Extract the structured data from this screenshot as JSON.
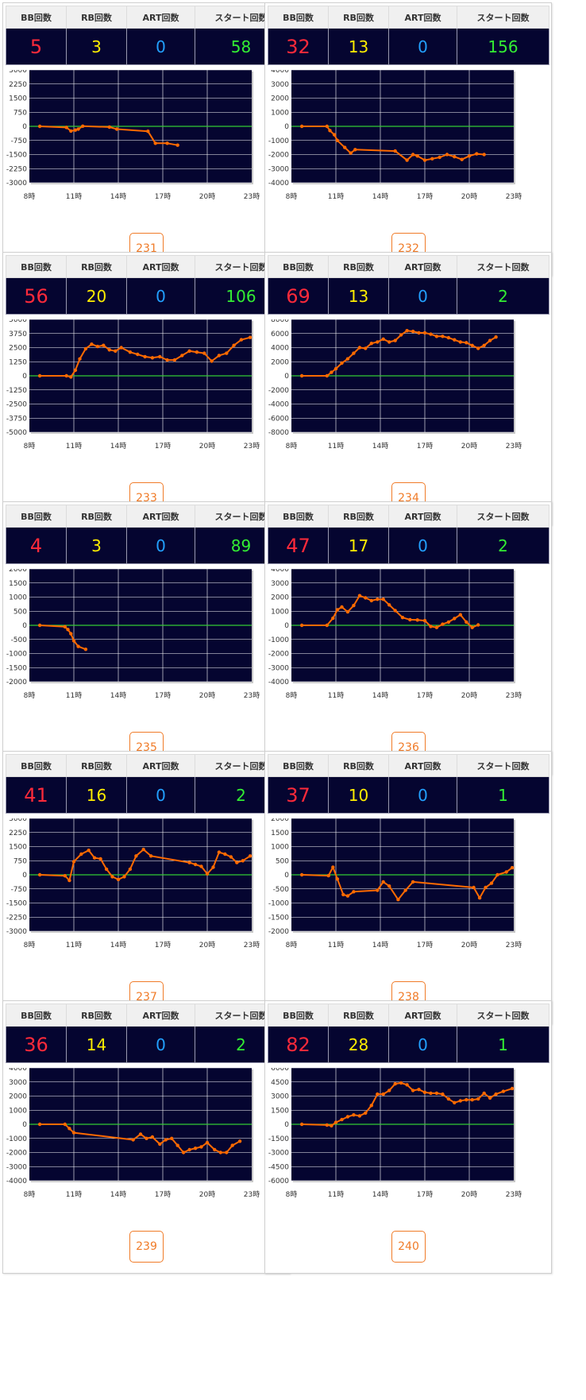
{
  "headers": {
    "bb": "BB回数",
    "rb": "RB回数",
    "art": "ART回数",
    "start": "スタート回数"
  },
  "x_ticks": [
    "8時",
    "11時",
    "14時",
    "17時",
    "20時",
    "23時"
  ],
  "colors": {
    "plot_bg": "#050530",
    "line": "#ff6a00",
    "zero_line": "#33cc33",
    "grid": "#ffffff"
  },
  "machines": [
    {
      "id": "231",
      "bb": "5",
      "rb": "3",
      "art": "0",
      "start": "58",
      "chart_data": {
        "type": "line",
        "x_unit": "hour",
        "xlim": [
          8,
          23
        ],
        "ylim": [
          -3000,
          3000
        ],
        "yticks": [
          3000,
          2250,
          1500,
          750,
          0,
          -750,
          -1500,
          -2250,
          -3000
        ],
        "points": [
          [
            8.7,
            0
          ],
          [
            10.5,
            -60
          ],
          [
            10.8,
            -250
          ],
          [
            11.1,
            -200
          ],
          [
            11.3,
            -150
          ],
          [
            11.6,
            10
          ],
          [
            13.4,
            -40
          ],
          [
            13.9,
            -150
          ],
          [
            16.0,
            -260
          ],
          [
            16.5,
            -900
          ],
          [
            17.3,
            -900
          ],
          [
            18.0,
            -1000
          ]
        ]
      }
    },
    {
      "id": "232",
      "bb": "32",
      "rb": "13",
      "art": "0",
      "start": "156",
      "chart_data": {
        "type": "line",
        "x_unit": "hour",
        "xlim": [
          8,
          23
        ],
        "ylim": [
          -4000,
          4000
        ],
        "yticks": [
          4000,
          3000,
          2000,
          1000,
          0,
          -1000,
          -2000,
          -3000,
          -4000
        ],
        "points": [
          [
            8.7,
            0
          ],
          [
            10.4,
            0
          ],
          [
            10.6,
            -300
          ],
          [
            10.9,
            -600
          ],
          [
            11.1,
            -1000
          ],
          [
            11.6,
            -1500
          ],
          [
            12.0,
            -1900
          ],
          [
            12.3,
            -1650
          ],
          [
            15.0,
            -1750
          ],
          [
            15.8,
            -2400
          ],
          [
            16.2,
            -2000
          ],
          [
            16.5,
            -2100
          ],
          [
            17.0,
            -2400
          ],
          [
            17.5,
            -2300
          ],
          [
            18.0,
            -2200
          ],
          [
            18.5,
            -2000
          ],
          [
            19.0,
            -2150
          ],
          [
            19.5,
            -2350
          ],
          [
            20.0,
            -2100
          ],
          [
            20.5,
            -1950
          ],
          [
            21.0,
            -2000
          ]
        ]
      }
    },
    {
      "id": "233",
      "bb": "56",
      "rb": "20",
      "art": "0",
      "start": "106",
      "chart_data": {
        "type": "line",
        "x_unit": "hour",
        "xlim": [
          8,
          23
        ],
        "ylim": [
          -5000,
          5000
        ],
        "yticks": [
          5000,
          3750,
          2500,
          1250,
          0,
          -1250,
          -2500,
          -3750,
          -5000
        ],
        "points": [
          [
            8.7,
            0
          ],
          [
            10.5,
            0
          ],
          [
            10.8,
            -100
          ],
          [
            11.1,
            500
          ],
          [
            11.4,
            1500
          ],
          [
            11.8,
            2400
          ],
          [
            12.2,
            2800
          ],
          [
            12.6,
            2600
          ],
          [
            13.0,
            2700
          ],
          [
            13.4,
            2300
          ],
          [
            13.8,
            2200
          ],
          [
            14.2,
            2500
          ],
          [
            14.8,
            2100
          ],
          [
            15.3,
            1900
          ],
          [
            15.8,
            1700
          ],
          [
            16.3,
            1600
          ],
          [
            16.8,
            1700
          ],
          [
            17.3,
            1400
          ],
          [
            17.8,
            1400
          ],
          [
            18.3,
            1800
          ],
          [
            18.8,
            2200
          ],
          [
            19.3,
            2100
          ],
          [
            19.8,
            2000
          ],
          [
            20.3,
            1300
          ],
          [
            20.8,
            1800
          ],
          [
            21.3,
            2000
          ],
          [
            21.8,
            2700
          ],
          [
            22.3,
            3200
          ],
          [
            22.9,
            3400
          ]
        ]
      }
    },
    {
      "id": "234",
      "bb": "69",
      "rb": "13",
      "art": "0",
      "start": "2",
      "chart_data": {
        "type": "line",
        "x_unit": "hour",
        "xlim": [
          8,
          23
        ],
        "ylim": [
          -8000,
          8000
        ],
        "yticks": [
          8000,
          6000,
          4000,
          2000,
          0,
          -2000,
          -4000,
          -6000,
          -8000
        ],
        "points": [
          [
            8.7,
            0
          ],
          [
            10.4,
            0
          ],
          [
            10.7,
            500
          ],
          [
            11.0,
            1000
          ],
          [
            11.4,
            1800
          ],
          [
            11.8,
            2400
          ],
          [
            12.2,
            3200
          ],
          [
            12.6,
            4000
          ],
          [
            13.0,
            3900
          ],
          [
            13.4,
            4600
          ],
          [
            13.8,
            4800
          ],
          [
            14.2,
            5200
          ],
          [
            14.6,
            4800
          ],
          [
            15.0,
            5000
          ],
          [
            15.4,
            5800
          ],
          [
            15.8,
            6400
          ],
          [
            16.2,
            6300
          ],
          [
            16.6,
            6100
          ],
          [
            17.0,
            6100
          ],
          [
            17.4,
            5900
          ],
          [
            17.8,
            5600
          ],
          [
            18.2,
            5600
          ],
          [
            18.6,
            5400
          ],
          [
            19.0,
            5100
          ],
          [
            19.4,
            4800
          ],
          [
            19.8,
            4700
          ],
          [
            20.2,
            4300
          ],
          [
            20.6,
            3900
          ],
          [
            21.0,
            4300
          ],
          [
            21.4,
            5000
          ],
          [
            21.8,
            5500
          ]
        ]
      }
    },
    {
      "id": "235",
      "bb": "4",
      "rb": "3",
      "art": "0",
      "start": "89",
      "chart_data": {
        "type": "line",
        "x_unit": "hour",
        "xlim": [
          8,
          23
        ],
        "ylim": [
          -2000,
          2000
        ],
        "yticks": [
          2000,
          1500,
          1000,
          500,
          0,
          -500,
          -1000,
          -1500,
          -2000
        ],
        "points": [
          [
            8.7,
            0
          ],
          [
            10.4,
            -50
          ],
          [
            10.6,
            -150
          ],
          [
            10.8,
            -300
          ],
          [
            11.0,
            -550
          ],
          [
            11.3,
            -750
          ],
          [
            11.8,
            -850
          ]
        ]
      }
    },
    {
      "id": "236",
      "bb": "47",
      "rb": "17",
      "art": "0",
      "start": "2",
      "chart_data": {
        "type": "line",
        "x_unit": "hour",
        "xlim": [
          8,
          23
        ],
        "ylim": [
          -4000,
          4000
        ],
        "yticks": [
          4000,
          3000,
          2000,
          1000,
          0,
          -1000,
          -2000,
          -3000,
          -4000
        ],
        "points": [
          [
            8.7,
            0
          ],
          [
            10.4,
            0
          ],
          [
            10.8,
            500
          ],
          [
            11.1,
            1100
          ],
          [
            11.4,
            1300
          ],
          [
            11.8,
            950
          ],
          [
            12.2,
            1400
          ],
          [
            12.6,
            2100
          ],
          [
            13.0,
            1950
          ],
          [
            13.4,
            1750
          ],
          [
            13.8,
            1850
          ],
          [
            14.2,
            1850
          ],
          [
            14.6,
            1450
          ],
          [
            15.0,
            1050
          ],
          [
            15.5,
            550
          ],
          [
            16.0,
            400
          ],
          [
            16.5,
            380
          ],
          [
            17.0,
            330
          ],
          [
            17.4,
            -80
          ],
          [
            17.8,
            -150
          ],
          [
            18.2,
            80
          ],
          [
            18.6,
            230
          ],
          [
            19.0,
            480
          ],
          [
            19.4,
            750
          ],
          [
            19.8,
            230
          ],
          [
            20.2,
            -150
          ],
          [
            20.6,
            30
          ]
        ]
      }
    },
    {
      "id": "237",
      "bb": "41",
      "rb": "16",
      "art": "0",
      "start": "2",
      "chart_data": {
        "type": "line",
        "x_unit": "hour",
        "xlim": [
          8,
          23
        ],
        "ylim": [
          -3000,
          3000
        ],
        "yticks": [
          3000,
          2250,
          1500,
          750,
          0,
          -750,
          -1500,
          -2250,
          -3000
        ],
        "points": [
          [
            8.7,
            0
          ],
          [
            10.4,
            -50
          ],
          [
            10.7,
            -300
          ],
          [
            11.0,
            700
          ],
          [
            11.5,
            1100
          ],
          [
            12.0,
            1300
          ],
          [
            12.4,
            900
          ],
          [
            12.8,
            850
          ],
          [
            13.2,
            300
          ],
          [
            13.6,
            -100
          ],
          [
            14.0,
            -250
          ],
          [
            14.4,
            -100
          ],
          [
            14.8,
            300
          ],
          [
            15.2,
            1000
          ],
          [
            15.7,
            1350
          ],
          [
            16.2,
            1000
          ],
          [
            18.8,
            650
          ],
          [
            19.2,
            550
          ],
          [
            19.6,
            450
          ],
          [
            20.0,
            50
          ],
          [
            20.4,
            400
          ],
          [
            20.8,
            1200
          ],
          [
            21.2,
            1100
          ],
          [
            21.6,
            950
          ],
          [
            22.0,
            650
          ],
          [
            22.4,
            750
          ],
          [
            22.9,
            1000
          ]
        ]
      }
    },
    {
      "id": "238",
      "bb": "37",
      "rb": "10",
      "art": "0",
      "start": "1",
      "chart_data": {
        "type": "line",
        "x_unit": "hour",
        "xlim": [
          8,
          23
        ],
        "ylim": [
          -2000,
          2000
        ],
        "yticks": [
          2000,
          1500,
          1000,
          500,
          0,
          -500,
          -1000,
          -1500,
          -2000
        ],
        "points": [
          [
            8.7,
            0
          ],
          [
            10.5,
            -30
          ],
          [
            10.8,
            270
          ],
          [
            11.1,
            -150
          ],
          [
            11.5,
            -700
          ],
          [
            11.8,
            -750
          ],
          [
            12.2,
            -600
          ],
          [
            13.8,
            -550
          ],
          [
            14.2,
            -250
          ],
          [
            14.6,
            -400
          ],
          [
            15.2,
            -880
          ],
          [
            15.7,
            -550
          ],
          [
            16.2,
            -250
          ],
          [
            20.3,
            -450
          ],
          [
            20.7,
            -820
          ],
          [
            21.1,
            -450
          ],
          [
            21.5,
            -300
          ],
          [
            21.9,
            0
          ],
          [
            22.5,
            100
          ],
          [
            22.9,
            250
          ]
        ]
      }
    },
    {
      "id": "239",
      "bb": "36",
      "rb": "14",
      "art": "0",
      "start": "2",
      "chart_data": {
        "type": "line",
        "x_unit": "hour",
        "xlim": [
          8,
          23
        ],
        "ylim": [
          -4000,
          4000
        ],
        "yticks": [
          4000,
          3000,
          2000,
          1000,
          0,
          -1000,
          -2000,
          -3000,
          -4000
        ],
        "points": [
          [
            8.7,
            0
          ],
          [
            10.4,
            0
          ],
          [
            10.7,
            -300
          ],
          [
            11.0,
            -600
          ],
          [
            15.0,
            -1100
          ],
          [
            15.5,
            -700
          ],
          [
            15.9,
            -1000
          ],
          [
            16.3,
            -900
          ],
          [
            16.8,
            -1400
          ],
          [
            17.2,
            -1100
          ],
          [
            17.6,
            -1000
          ],
          [
            18.0,
            -1500
          ],
          [
            18.4,
            -2000
          ],
          [
            18.8,
            -1800
          ],
          [
            19.2,
            -1700
          ],
          [
            19.6,
            -1600
          ],
          [
            20.0,
            -1300
          ],
          [
            20.5,
            -1800
          ],
          [
            20.9,
            -2000
          ],
          [
            21.3,
            -2000
          ],
          [
            21.7,
            -1500
          ],
          [
            22.2,
            -1200
          ]
        ]
      }
    },
    {
      "id": "240",
      "bb": "82",
      "rb": "28",
      "art": "0",
      "start": "1",
      "chart_data": {
        "type": "line",
        "x_unit": "hour",
        "xlim": [
          8,
          23
        ],
        "ylim": [
          -6000,
          6000
        ],
        "yticks": [
          6000,
          4500,
          3000,
          1500,
          0,
          -1500,
          -3000,
          -4500,
          -6000
        ],
        "points": [
          [
            8.7,
            0
          ],
          [
            10.4,
            -80
          ],
          [
            10.7,
            -150
          ],
          [
            11.0,
            200
          ],
          [
            11.4,
            500
          ],
          [
            11.8,
            800
          ],
          [
            12.2,
            1000
          ],
          [
            12.6,
            900
          ],
          [
            13.0,
            1200
          ],
          [
            13.4,
            2000
          ],
          [
            13.8,
            3200
          ],
          [
            14.2,
            3200
          ],
          [
            14.6,
            3600
          ],
          [
            15.0,
            4300
          ],
          [
            15.4,
            4400
          ],
          [
            15.8,
            4200
          ],
          [
            16.2,
            3600
          ],
          [
            16.6,
            3700
          ],
          [
            17.0,
            3400
          ],
          [
            17.4,
            3300
          ],
          [
            17.8,
            3300
          ],
          [
            18.2,
            3200
          ],
          [
            18.6,
            2700
          ],
          [
            19.0,
            2300
          ],
          [
            19.4,
            2500
          ],
          [
            19.8,
            2600
          ],
          [
            20.2,
            2600
          ],
          [
            20.6,
            2700
          ],
          [
            21.0,
            3300
          ],
          [
            21.4,
            2800
          ],
          [
            21.8,
            3200
          ],
          [
            22.3,
            3500
          ],
          [
            22.9,
            3800
          ]
        ]
      }
    }
  ]
}
